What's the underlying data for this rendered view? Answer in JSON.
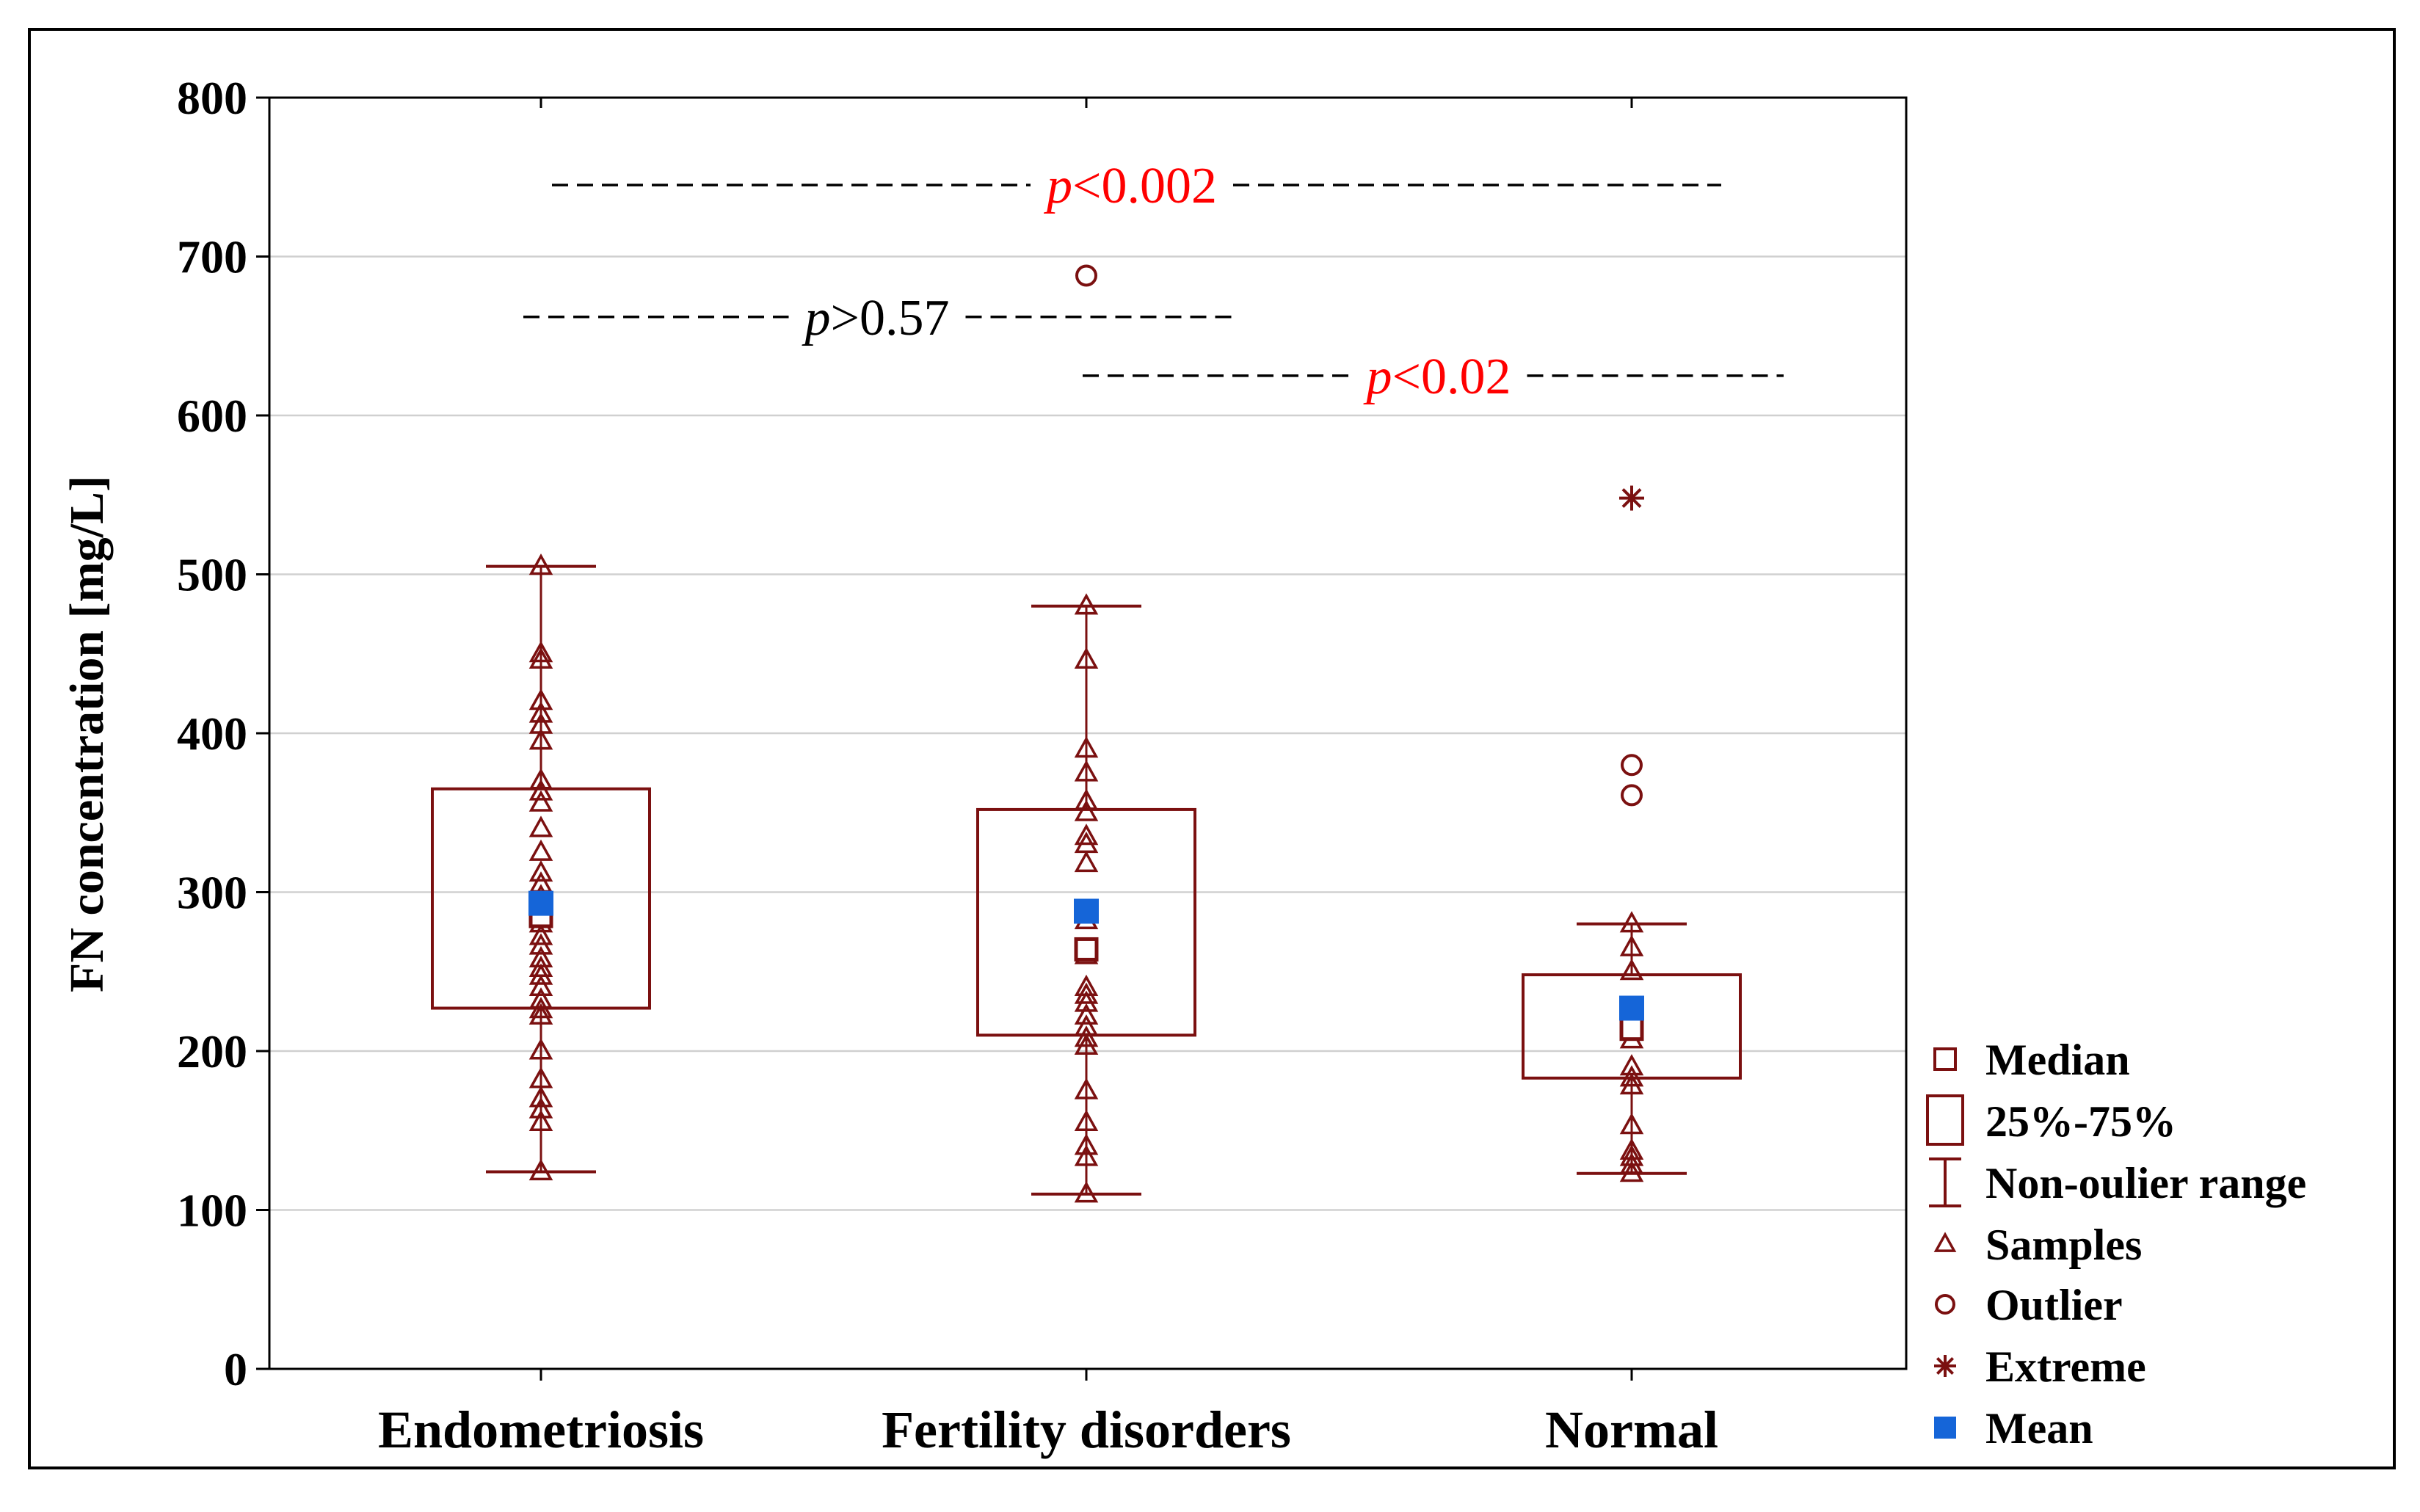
{
  "chart_data": {
    "type": "boxplot",
    "ylabel": "FN concentration [mg/L]",
    "xlabel": "",
    "ylim": [
      0,
      800
    ],
    "yticks": [
      0,
      100,
      200,
      300,
      400,
      500,
      600,
      700,
      800
    ],
    "grid": true,
    "legend_position": "right",
    "colors": {
      "box": "#7b1010",
      "mean": "#1565d8",
      "significant": "#ff0000",
      "nonsignificant": "#000000",
      "grid": "#d0d0d0"
    },
    "categories": [
      "Endometriosis",
      "Fertility disorders",
      "Normal"
    ],
    "groups": [
      {
        "name": "Endometriosis",
        "median": 285,
        "q1": 227,
        "q3": 365,
        "whisker_low": 124,
        "whisker_high": 505,
        "mean": 293,
        "samples": [
          124,
          155,
          163,
          170,
          182,
          200,
          222,
          226,
          232,
          240,
          247,
          252,
          258,
          266,
          272,
          280,
          288,
          297,
          305,
          312,
          325,
          340,
          356,
          363,
          370,
          395,
          405,
          412,
          420,
          446,
          450,
          505
        ],
        "outliers": [],
        "extremes": []
      },
      {
        "name": "Fertility disorders",
        "median": 264,
        "q1": 210,
        "q3": 352,
        "whisker_low": 110,
        "whisker_high": 480,
        "mean": 288,
        "samples": [
          110,
          133,
          140,
          155,
          175,
          203,
          208,
          215,
          222,
          230,
          235,
          240,
          260,
          282,
          318,
          330,
          335,
          350,
          357,
          375,
          390,
          446,
          480
        ],
        "outliers": [
          688
        ],
        "extremes": []
      },
      {
        "name": "Normal",
        "median": 214,
        "q1": 183,
        "q3": 248,
        "whisker_low": 123,
        "whisker_high": 280,
        "mean": 227,
        "samples": [
          123,
          128,
          133,
          137,
          153,
          178,
          183,
          190,
          207,
          218,
          250,
          265,
          280
        ],
        "outliers": [
          361,
          380
        ],
        "extremes": [
          548
        ]
      }
    ],
    "annotations": [
      {
        "from": "Endometriosis",
        "to": "Normal",
        "y": 745,
        "p_italic": "p",
        "p_rest": "<0.002",
        "significant": true
      },
      {
        "from": "Endometriosis",
        "to": "Fertility disorders",
        "y": 662,
        "p_italic": "p",
        "p_rest": ">0.57",
        "significant": false
      },
      {
        "from": "Fertility disorders",
        "to": "Normal",
        "y": 625,
        "p_italic": "p",
        "p_rest": "<0.02",
        "significant": true
      }
    ],
    "legend": [
      {
        "symbol": "median",
        "label": "Median"
      },
      {
        "symbol": "box",
        "label": "25%-75%"
      },
      {
        "symbol": "whisker",
        "label": "Non-oulier range"
      },
      {
        "symbol": "triangle",
        "label": "Samples"
      },
      {
        "symbol": "circle",
        "label": "Outlier"
      },
      {
        "symbol": "star",
        "label": "Extreme"
      },
      {
        "symbol": "mean",
        "label": "Mean"
      }
    ]
  }
}
